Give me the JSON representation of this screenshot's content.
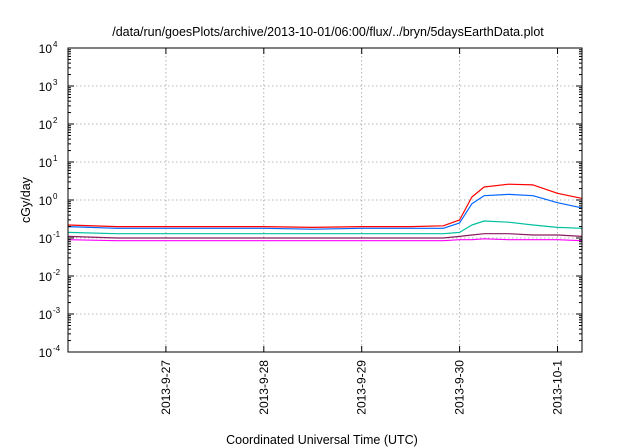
{
  "chart_data": {
    "type": "line",
    "title": "/data/run/goesPlots/archive/2013-10-01/06:00/flux/../bryn/5daysEarthData.plot",
    "xlabel": "Coordinated Universal Time (UTC)",
    "ylabel": "cGy/day",
    "y_scale": "log",
    "ylim": [
      0.0001,
      10000
    ],
    "xlim": [
      "2013-09-26T00:00",
      "2013-10-01T06:00"
    ],
    "grid": true,
    "x_tick_labels": [
      "2013-9-27",
      "2013-9-28",
      "2013-9-29",
      "2013-9-30",
      "2013-10-1"
    ],
    "x_ticks": [
      "2013-09-27T00:00",
      "2013-09-28T00:00",
      "2013-09-29T00:00",
      "2013-09-30T00:00",
      "2013-10-01T00:00"
    ],
    "y_ticks": [
      {
        "base": "10",
        "exp": "-4"
      },
      {
        "base": "10",
        "exp": "-3"
      },
      {
        "base": "10",
        "exp": "-2"
      },
      {
        "base": "10",
        "exp": "-1"
      },
      {
        "base": "10",
        "exp": "0"
      },
      {
        "base": "10",
        "exp": "1"
      },
      {
        "base": "10",
        "exp": "2"
      },
      {
        "base": "10",
        "exp": "3"
      },
      {
        "base": "10",
        "exp": "4"
      }
    ],
    "series": [
      {
        "color": "#ff0000",
        "x": [
          "2013-09-26T00:00",
          "2013-09-26T12:00",
          "2013-09-27T00:00",
          "2013-09-27T12:00",
          "2013-09-28T00:00",
          "2013-09-28T12:00",
          "2013-09-29T00:00",
          "2013-09-29T12:00",
          "2013-09-29T20:00",
          "2013-09-30T00:00",
          "2013-09-30T03:00",
          "2013-09-30T06:00",
          "2013-09-30T12:00",
          "2013-09-30T18:00",
          "2013-10-01T00:00",
          "2013-10-01T06:00"
        ],
        "values": [
          0.22,
          0.2,
          0.2,
          0.2,
          0.2,
          0.19,
          0.2,
          0.2,
          0.21,
          0.3,
          1.2,
          2.2,
          2.6,
          2.5,
          1.5,
          1.1
        ]
      },
      {
        "color": "#0066ff",
        "x": [
          "2013-09-26T00:00",
          "2013-09-26T12:00",
          "2013-09-27T00:00",
          "2013-09-27T12:00",
          "2013-09-28T00:00",
          "2013-09-28T12:00",
          "2013-09-29T00:00",
          "2013-09-29T12:00",
          "2013-09-29T20:00",
          "2013-09-30T00:00",
          "2013-09-30T03:00",
          "2013-09-30T06:00",
          "2013-09-30T12:00",
          "2013-09-30T18:00",
          "2013-10-01T00:00",
          "2013-10-01T06:00"
        ],
        "values": [
          0.2,
          0.18,
          0.18,
          0.18,
          0.18,
          0.17,
          0.18,
          0.18,
          0.18,
          0.25,
          0.8,
          1.3,
          1.4,
          1.3,
          0.85,
          0.62
        ]
      },
      {
        "color": "#00c0a0",
        "x": [
          "2013-09-26T00:00",
          "2013-09-26T12:00",
          "2013-09-27T00:00",
          "2013-09-27T12:00",
          "2013-09-28T00:00",
          "2013-09-28T12:00",
          "2013-09-29T00:00",
          "2013-09-29T12:00",
          "2013-09-29T20:00",
          "2013-09-30T00:00",
          "2013-09-30T03:00",
          "2013-09-30T06:00",
          "2013-09-30T12:00",
          "2013-09-30T18:00",
          "2013-10-01T00:00",
          "2013-10-01T06:00"
        ],
        "values": [
          0.14,
          0.13,
          0.13,
          0.13,
          0.13,
          0.13,
          0.13,
          0.13,
          0.13,
          0.14,
          0.22,
          0.28,
          0.26,
          0.22,
          0.19,
          0.18
        ]
      },
      {
        "color": "#8b1a5e",
        "x": [
          "2013-09-26T00:00",
          "2013-09-26T12:00",
          "2013-09-27T00:00",
          "2013-09-27T12:00",
          "2013-09-28T00:00",
          "2013-09-28T12:00",
          "2013-09-29T00:00",
          "2013-09-29T12:00",
          "2013-09-29T20:00",
          "2013-09-30T00:00",
          "2013-09-30T03:00",
          "2013-09-30T06:00",
          "2013-09-30T12:00",
          "2013-09-30T18:00",
          "2013-10-01T00:00",
          "2013-10-01T06:00"
        ],
        "values": [
          0.11,
          0.1,
          0.1,
          0.1,
          0.1,
          0.1,
          0.1,
          0.1,
          0.1,
          0.11,
          0.12,
          0.13,
          0.13,
          0.12,
          0.12,
          0.11
        ]
      },
      {
        "color": "#ff00ff",
        "x": [
          "2013-09-26T00:00",
          "2013-09-26T12:00",
          "2013-09-27T00:00",
          "2013-09-27T12:00",
          "2013-09-28T00:00",
          "2013-09-28T12:00",
          "2013-09-29T00:00",
          "2013-09-29T12:00",
          "2013-09-29T20:00",
          "2013-09-30T00:00",
          "2013-09-30T03:00",
          "2013-09-30T06:00",
          "2013-09-30T12:00",
          "2013-09-30T18:00",
          "2013-10-01T00:00",
          "2013-10-01T06:00"
        ],
        "values": [
          0.09,
          0.085,
          0.085,
          0.085,
          0.085,
          0.085,
          0.085,
          0.085,
          0.085,
          0.09,
          0.09,
          0.095,
          0.09,
          0.09,
          0.09,
          0.085
        ]
      }
    ]
  }
}
